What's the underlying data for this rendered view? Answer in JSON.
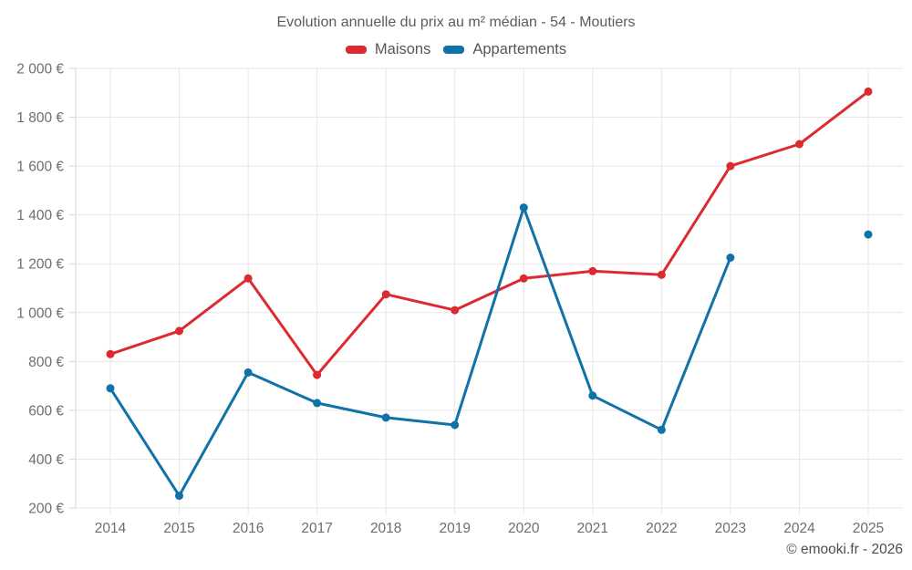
{
  "title": "Evolution annuelle du prix au m² médian - 54 - Moutiers",
  "footer": {
    "text": "© emooki.fr - 2026"
  },
  "colors": {
    "maisons": "#dc2a30",
    "appartements": "#1172a8",
    "gridline": "#e7e7e7",
    "axis": "#d6d6d6",
    "tick_text": "#6e6e6e"
  },
  "chart_data": {
    "type": "line",
    "title": "Evolution annuelle du prix au m² médian - 54 - Moutiers",
    "categories": [
      "2014",
      "2015",
      "2016",
      "2017",
      "2018",
      "2019",
      "2020",
      "2021",
      "2022",
      "2023",
      "2024",
      "2025"
    ],
    "series": [
      {
        "name": "Maisons",
        "color": "#dc2a30",
        "values": [
          830,
          925,
          1140,
          745,
          1075,
          1010,
          1140,
          1170,
          1155,
          1600,
          1690,
          1905
        ]
      },
      {
        "name": "Appartements",
        "color": "#1172a8",
        "values": [
          690,
          250,
          755,
          630,
          570,
          540,
          1430,
          660,
          520,
          1225,
          null,
          1320
        ]
      }
    ],
    "ylim": [
      200,
      2000
    ],
    "yticks": [
      200,
      400,
      600,
      800,
      1000,
      1200,
      1400,
      1600,
      1800,
      2000
    ],
    "ytick_labels": [
      "200 €",
      "400 €",
      "600 €",
      "800 €",
      "1 000 €",
      "1 200 €",
      "1 400 €",
      "1 600 €",
      "1 800 €",
      "2 000 €"
    ],
    "unit": "€",
    "grid": true,
    "legend_position": "top",
    "note": "Appartements has no value for 2024; 2025 point is isolated"
  }
}
